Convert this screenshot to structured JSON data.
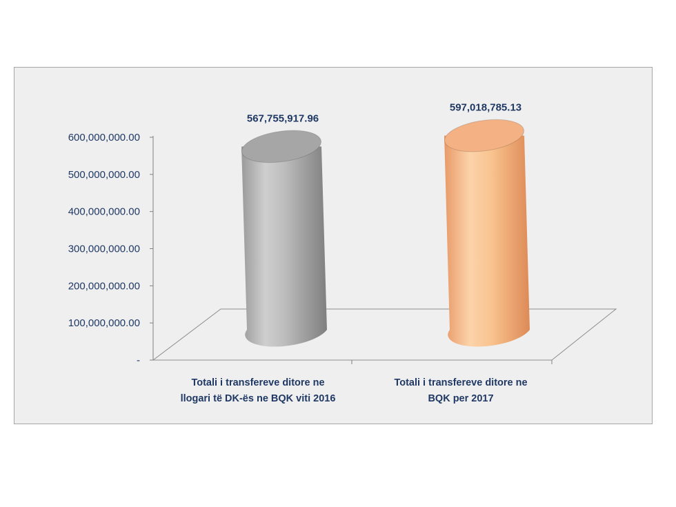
{
  "chart_data": {
    "type": "bar",
    "categories": [
      [
        "Totali i transfereve ditore ne",
        "llogari të DK-ës ne BQK viti 2016"
      ],
      [
        "Totali i transfereve ditore ne",
        "BQK per 2017"
      ]
    ],
    "values": [
      567755917.96,
      597018785.13
    ],
    "data_labels": [
      "567,755,917.96",
      "597,018,785.13"
    ],
    "y_tick_labels": [
      "-",
      "100,000,000.00",
      "200,000,000.00",
      "300,000,000.00",
      "400,000,000.00",
      "500,000,000.00",
      "600,000,000.00"
    ],
    "ylim": [
      0,
      600000000
    ],
    "bar_colors": [
      "#a6a6a6",
      "#f4b183"
    ],
    "title": "",
    "xlabel": "",
    "ylabel": "",
    "grid": false,
    "legend": "none"
  }
}
